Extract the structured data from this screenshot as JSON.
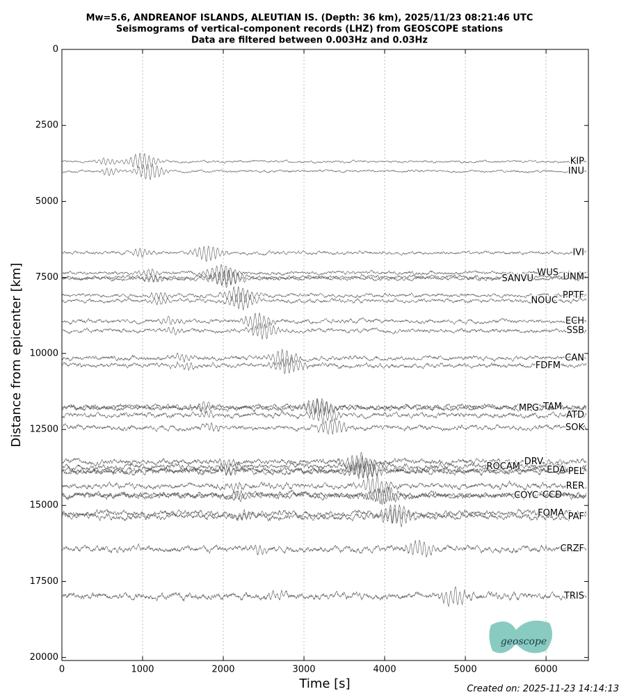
{
  "chart_data": {
    "type": "record-section",
    "title": [
      "Mw=5.6, ANDREANOF ISLANDS, ALEUTIAN IS. (Depth: 36 km), 2025/11/23 08:21:46 UTC",
      "Seismograms of vertical-component records (LHZ) from GEOSCOPE stations",
      "Data are filtered between 0.003Hz and 0.03Hz"
    ],
    "x_label": "Time [s]",
    "y_label": "Distance from epicenter [km]",
    "xlim": [
      0,
      6525
    ],
    "xticks": [
      0,
      1000,
      2000,
      3000,
      4000,
      5000,
      6000
    ],
    "ylim": [
      0,
      20100
    ],
    "yticks": [
      0,
      2500,
      5000,
      7500,
      10000,
      12500,
      15000,
      17500,
      20000
    ],
    "y_inverted": true,
    "grid": true,
    "color": "#555555",
    "categories": [
      "KIP",
      "INU",
      "IVI",
      "WUS",
      "UNM",
      "SANVU",
      "PPTF",
      "NOUC",
      "ECH",
      "SSB",
      "CAN",
      "FDFM",
      "TAM",
      "MPG",
      "ATD",
      "SOK",
      "DRV",
      "ROCAM",
      "EDA",
      "PEL",
      "RER",
      "CCD",
      "COYC",
      "FOMA",
      "PAF",
      "CRZF",
      "TRIS"
    ],
    "values": [
      3690,
      4010,
      6690,
      7350,
      7490,
      7540,
      8090,
      8270,
      8940,
      9250,
      10150,
      10400,
      11750,
      11800,
      12030,
      12440,
      13560,
      13720,
      13840,
      13880,
      14360,
      14660,
      14670,
      15260,
      15370,
      16430,
      17980
    ]
  },
  "footer": "Created on: 2025-11-23 14:14:13",
  "logo": "geoscope"
}
